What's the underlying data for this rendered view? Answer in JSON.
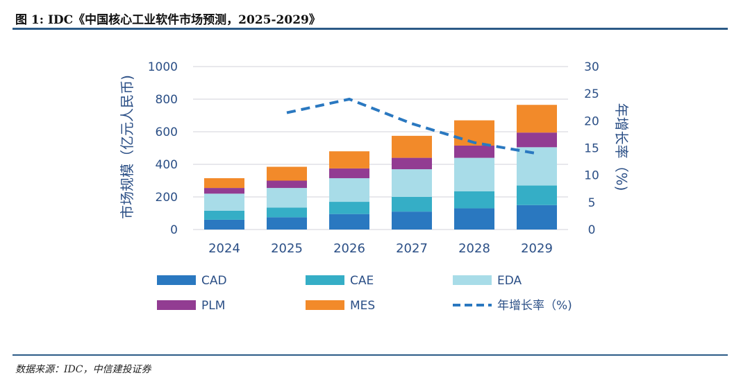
{
  "header": {
    "title": "图 1: IDC《中国核心工业软件市场预测，2025-2029》"
  },
  "footer": {
    "source": "数据来源：IDC，中信建投证券"
  },
  "chart_data": {
    "type": "bar",
    "stacked": true,
    "categories": [
      "2024",
      "2025",
      "2026",
      "2027",
      "2028",
      "2029"
    ],
    "series": [
      {
        "name": "CAD",
        "color": "#2a78c0",
        "values": [
          60,
          75,
          95,
          110,
          130,
          150
        ]
      },
      {
        "name": "CAE",
        "color": "#35aec6",
        "values": [
          55,
          60,
          75,
          90,
          105,
          120
        ]
      },
      {
        "name": "EDA",
        "color": "#a8dce8",
        "values": [
          105,
          120,
          145,
          170,
          205,
          235
        ]
      },
      {
        "name": "PLM",
        "color": "#923c92",
        "values": [
          35,
          45,
          60,
          70,
          75,
          90
        ]
      },
      {
        "name": "MES",
        "color": "#f28a2a",
        "values": [
          60,
          85,
          105,
          135,
          155,
          170
        ]
      }
    ],
    "line": {
      "name": "年增长率（%)",
      "color": "#2a78c0",
      "style": "dashed",
      "axis": "right",
      "x": [
        "2025",
        "2026",
        "2027",
        "2028",
        "2029"
      ],
      "values": [
        21.5,
        24,
        19.5,
        16,
        14
      ]
    },
    "ylabel": "市场规模（亿元人民币)",
    "y2label": "年增长率（%)",
    "ylim": [
      0,
      1000
    ],
    "y2lim": [
      0,
      30
    ],
    "yticks": [
      "0",
      "200",
      "400",
      "600",
      "800",
      "1000"
    ],
    "y2ticks": [
      "0",
      "5",
      "10",
      "15",
      "20",
      "25",
      "30"
    ],
    "grid": true,
    "legend_position": "bottom"
  }
}
